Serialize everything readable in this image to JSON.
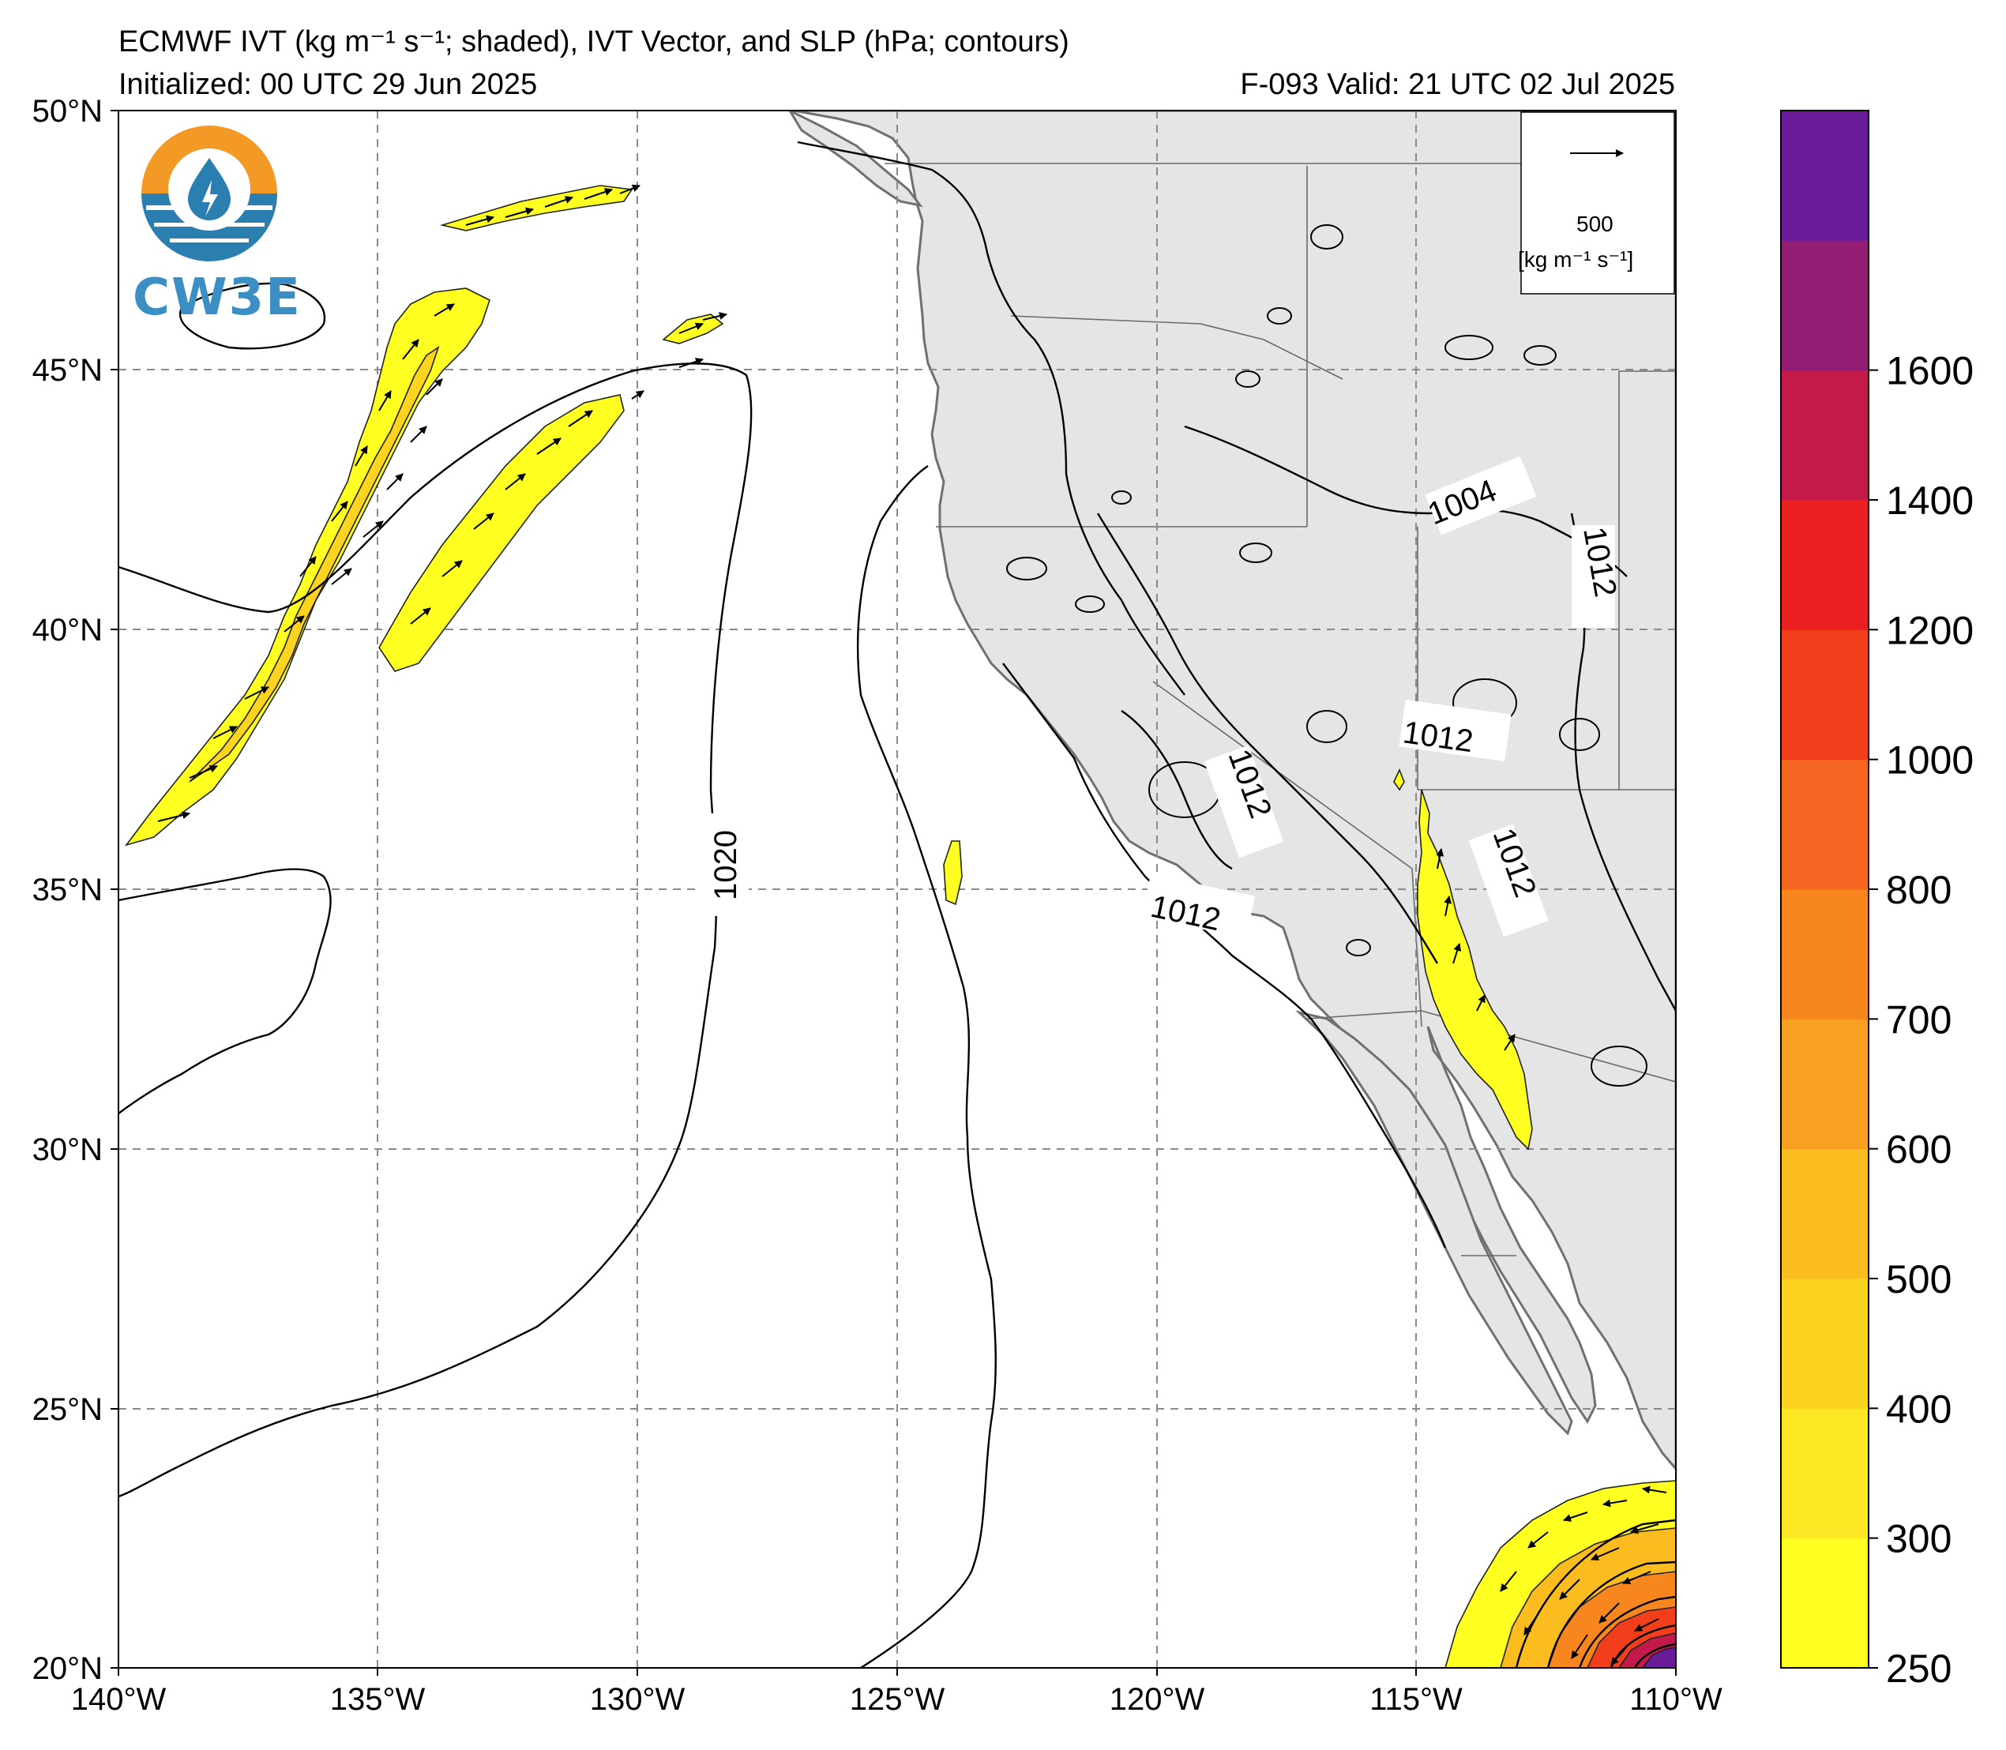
{
  "header": {
    "title": "ECMWF IVT (kg m⁻¹ s⁻¹; shaded), IVT Vector, and SLP (hPa; contours)",
    "initialized": "Initialized: 00 UTC 29 Jun 2025",
    "valid": "F-093  Valid: 21 UTC 02 Jul 2025"
  },
  "logo": {
    "text": "CW3E"
  },
  "vector_key": {
    "value": "500",
    "units": "[kg m⁻¹ s⁻¹]"
  },
  "map": {
    "lon_range": [
      -140,
      -110
    ],
    "lat_range": [
      20,
      50
    ],
    "lon_ticks": [
      "140°W",
      "135°W",
      "130°W",
      "125°W",
      "120°W",
      "115°W",
      "110°W"
    ],
    "lat_ticks": [
      "50°N",
      "45°N",
      "40°N",
      "35°N",
      "30°N",
      "25°N",
      "20°N"
    ],
    "gridlines": "dashed",
    "land_color": "#e5e5e5",
    "ocean_color": "#ffffff"
  },
  "contour_labels": [
    "1020",
    "1004",
    "1012",
    "1012",
    "1012",
    "1012",
    "1012"
  ],
  "colorbar": {
    "levels": [
      "250",
      "300",
      "400",
      "500",
      "600",
      "700",
      "800",
      "1000",
      "1200",
      "1400",
      "1600"
    ],
    "colors": [
      "#ffff22",
      "#fde725",
      "#fcd31e",
      "#fbbc1f",
      "#f9a021",
      "#f7861f",
      "#f66522",
      "#f33e1c",
      "#ea1f1f",
      "#c21a4b",
      "#931d72",
      "#6a1b9a"
    ]
  }
}
